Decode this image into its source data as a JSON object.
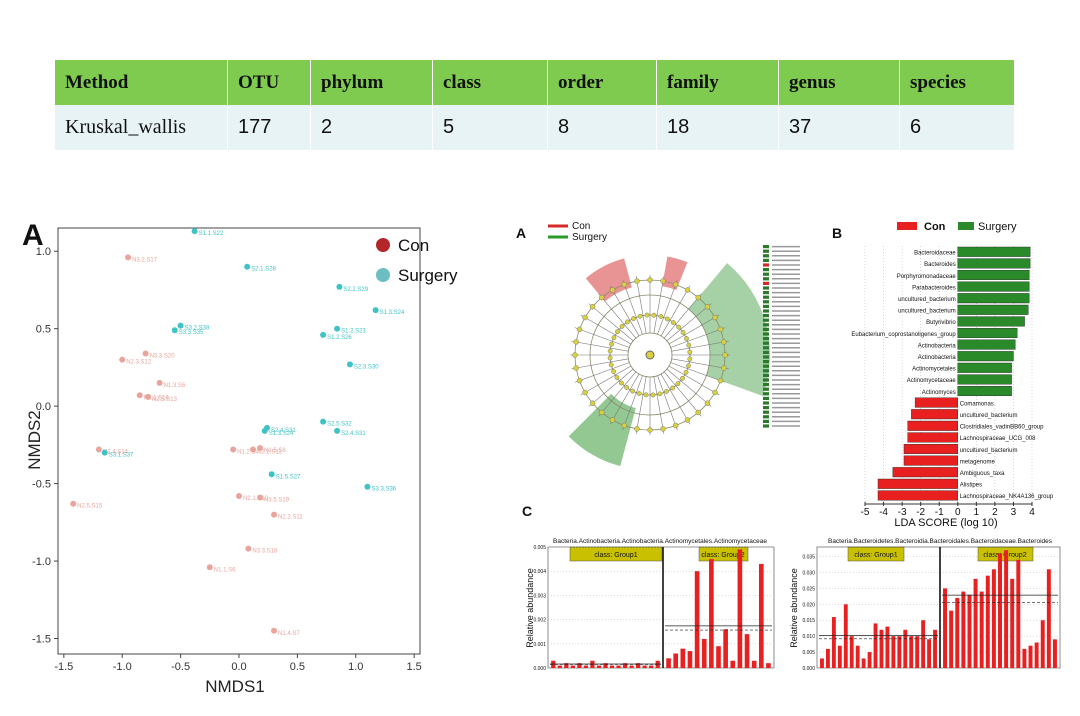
{
  "table": {
    "headers": [
      "Method",
      "OTU",
      "phylum",
      "class",
      "order",
      "family",
      "genus",
      "species"
    ],
    "row": [
      "Kruskal_wallis",
      "177",
      "2",
      "5",
      "8",
      "18",
      "37",
      "6"
    ]
  },
  "colors": {
    "con": "#e9a49c",
    "surgery": "#3fc3c7",
    "con_legend": "#b3272b",
    "green_bar": "#2a8a2a",
    "red_bar": "#e82020"
  },
  "panel_a": {
    "letter": "A",
    "legend": [
      {
        "label": "Con",
        "color": "#b3272b"
      },
      {
        "label": "Surgery",
        "color": "#6bbec2"
      }
    ],
    "xlabel": "NMDS1",
    "ylabel": "NMDS2",
    "xticks": [
      "-1.5",
      "-1.0",
      "-0.5",
      "0.0",
      "0.5",
      "1.0",
      "1.5"
    ],
    "yticks": [
      "1.0",
      "0.5",
      "0.0",
      "-0.5",
      "-1.0",
      "-1.5"
    ]
  },
  "cladogram": {
    "letter": "A",
    "legend": [
      {
        "label": "Con",
        "color": "#d42a2a"
      },
      {
        "label": "Surgery",
        "color": "#2a9a2a"
      }
    ]
  },
  "panel_b": {
    "letter": "B",
    "legend": [
      {
        "label": "Con",
        "color": "#e82020"
      },
      {
        "label": "Surgery",
        "color": "#2a8a2a"
      }
    ],
    "xlabel": "LDA SCORE (log 10)"
  },
  "panel_c": {
    "letter": "C",
    "left_title": "Bacteria.Actinobacteria.Actinobacteria.Actinomycetales.Actinomycetaceae",
    "right_title": "Bacteria.Bacteroidetes.Bacteroidia.Bacteroidales.Bacteroidaceae.Bacteroides",
    "group1": "class: Group1",
    "group2": "class: Group2",
    "ylabel": "Relative abundance"
  },
  "chart_data": [
    {
      "type": "scatter",
      "title": "",
      "xlabel": "NMDS1",
      "ylabel": "NMDS2",
      "xlim": [
        -1.55,
        1.55
      ],
      "ylim": [
        -1.6,
        1.15
      ],
      "series": [
        {
          "name": "Con",
          "points": [
            {
              "x": -0.95,
              "y": 0.96,
              "label": "N3.2.S17"
            },
            {
              "x": -0.8,
              "y": 0.34,
              "label": "N3.3.S20"
            },
            {
              "x": -1.0,
              "y": 0.3,
              "label": "N2.3.S12"
            },
            {
              "x": -0.68,
              "y": 0.15,
              "label": "N1.3.S6"
            },
            {
              "x": -0.85,
              "y": 0.07,
              "label": "N3.1.S16"
            },
            {
              "x": -0.78,
              "y": 0.06,
              "label": "N2.5.S13"
            },
            {
              "x": -1.2,
              "y": -0.28,
              "label": "N2.4.S14"
            },
            {
              "x": -0.05,
              "y": -0.28,
              "label": "N1.2.S4"
            },
            {
              "x": 0.12,
              "y": -0.28,
              "label": "N2.2.S11"
            },
            {
              "x": 0.18,
              "y": -0.27,
              "label": "N1.5.S8"
            },
            {
              "x": 0.0,
              "y": -0.58,
              "label": "N2.1.S10"
            },
            {
              "x": 0.18,
              "y": -0.59,
              "label": "N3.5.S19"
            },
            {
              "x": 0.3,
              "y": -0.7,
              "label": "N2.2.S11"
            },
            {
              "x": -1.42,
              "y": -0.63,
              "label": "N2.5.S15"
            },
            {
              "x": 0.08,
              "y": -0.92,
              "label": "N3.3.S18"
            },
            {
              "x": -0.25,
              "y": -1.04,
              "label": "N1.1.S6"
            },
            {
              "x": 0.3,
              "y": -1.45,
              "label": "N1.4.S7"
            }
          ]
        },
        {
          "name": "Surgery",
          "points": [
            {
              "x": -0.38,
              "y": 1.13,
              "label": "S1.1.S22"
            },
            {
              "x": 0.07,
              "y": 0.9,
              "label": "S2.1.S28"
            },
            {
              "x": 0.86,
              "y": 0.77,
              "label": "S2.2.S29"
            },
            {
              "x": 1.17,
              "y": 0.62,
              "label": "S1.3.S24"
            },
            {
              "x": -0.5,
              "y": 0.52,
              "label": "S3.2.S38"
            },
            {
              "x": -0.55,
              "y": 0.49,
              "label": "S3.3.S35"
            },
            {
              "x": 0.84,
              "y": 0.5,
              "label": "S1.2.S23"
            },
            {
              "x": 0.72,
              "y": 0.46,
              "label": "S1.2.S26"
            },
            {
              "x": 0.95,
              "y": 0.27,
              "label": "S2.3.S30"
            },
            {
              "x": 0.72,
              "y": -0.1,
              "label": "S2.5.S32"
            },
            {
              "x": 0.24,
              "y": -0.14,
              "label": "S2.4.S31"
            },
            {
              "x": 0.84,
              "y": -0.16,
              "label": "S2.4.S31"
            },
            {
              "x": 0.22,
              "y": -0.16,
              "label": "S1.3.S24"
            },
            {
              "x": -1.15,
              "y": -0.3,
              "label": "S3.1.S37"
            },
            {
              "x": 0.28,
              "y": -0.44,
              "label": "S1.5.S27"
            },
            {
              "x": 1.1,
              "y": -0.52,
              "label": "S3.3.S36"
            }
          ]
        }
      ]
    },
    {
      "type": "bar",
      "orientation": "horizontal",
      "title": "",
      "xlabel": "LDA SCORE (log 10)",
      "xticks": [
        "-5",
        "-4",
        "-3",
        "-2",
        "-1",
        "0",
        "1",
        "2",
        "3",
        "4"
      ],
      "categories": [
        "Bacteroidaceae",
        "Bacteroides",
        "Porphyromonadaceae",
        "Parabacteroides",
        "uncultured_bacterium",
        "uncultured_bacterium",
        "Butyrivibrio",
        "Eubacterium_coprostanoligenes_group",
        "Actinobacteria",
        "Actinobacteria",
        "Actinomycetales",
        "Actinomycetaceae",
        "Actinomyces",
        "Comamonas",
        "uncultured_bacterium",
        "Clostridiales_vadinBB60_group",
        "Lachnospiraceae_UCG_008",
        "uncultured_bacterium",
        "metagenome",
        "Ambiguous_taxa",
        "Alistipes",
        "Lachnospiraceae_NK4A136_group"
      ],
      "values": [
        3.9,
        3.9,
        3.85,
        3.85,
        3.85,
        3.8,
        3.6,
        3.2,
        3.1,
        3.0,
        2.9,
        2.9,
        2.9,
        -2.3,
        -2.5,
        -2.7,
        -2.7,
        -2.9,
        -2.9,
        -3.5,
        -4.3,
        -4.3
      ],
      "group": [
        "Surgery",
        "Surgery",
        "Surgery",
        "Surgery",
        "Surgery",
        "Surgery",
        "Surgery",
        "Surgery",
        "Surgery",
        "Surgery",
        "Surgery",
        "Surgery",
        "Surgery",
        "Con",
        "Con",
        "Con",
        "Con",
        "Con",
        "Con",
        "Con",
        "Con",
        "Con"
      ]
    },
    {
      "type": "bar",
      "title": "Bacteria.Actinobacteria.Actinobacteria.Actinomycetales.Actinomycetaceae",
      "ylabel": "Relative abundance",
      "ylim": [
        0,
        0.005
      ],
      "yticks": [
        "0.000",
        "0.001",
        "0.002",
        "0.003",
        "0.004",
        "0.005"
      ],
      "series": [
        {
          "name": "Group1",
          "values": [
            0.0003,
            0.0001,
            0.0002,
            0.0001,
            0.0002,
            0.0001,
            0.0003,
            0.0001,
            0.0002,
            0.0001,
            0.0001,
            0.0002,
            0.0001,
            0.0002,
            0.0001,
            0.0001,
            0.0003
          ]
        },
        {
          "name": "Group2",
          "values": [
            0.0004,
            0.0006,
            0.0008,
            0.0007,
            0.004,
            0.0012,
            0.0045,
            0.0009,
            0.0016,
            0.0003,
            0.0049,
            0.0014,
            0.0003,
            0.0043,
            0.0002
          ]
        }
      ]
    },
    {
      "type": "bar",
      "title": "Bacteria.Bacteroidetes.Bacteroidia.Bacteroidales.Bacteroidaceae.Bacteroides",
      "ylabel": "Relative abundance",
      "ylim": [
        0,
        0.038
      ],
      "yticks": [
        "0.000",
        "0.005",
        "0.010",
        "0.015",
        "0.020",
        "0.025",
        "0.030",
        "0.035"
      ],
      "series": [
        {
          "name": "Group1",
          "values": [
            0.003,
            0.006,
            0.016,
            0.007,
            0.02,
            0.01,
            0.007,
            0.003,
            0.005,
            0.014,
            0.012,
            0.013,
            0.01,
            0.01,
            0.012,
            0.01,
            0.01,
            0.015,
            0.009,
            0.012
          ]
        },
        {
          "name": "Group2",
          "values": [
            0.025,
            0.018,
            0.022,
            0.024,
            0.023,
            0.028,
            0.024,
            0.029,
            0.031,
            0.036,
            0.037,
            0.028,
            0.034,
            0.006,
            0.007,
            0.008,
            0.015,
            0.031,
            0.009
          ]
        }
      ]
    }
  ]
}
